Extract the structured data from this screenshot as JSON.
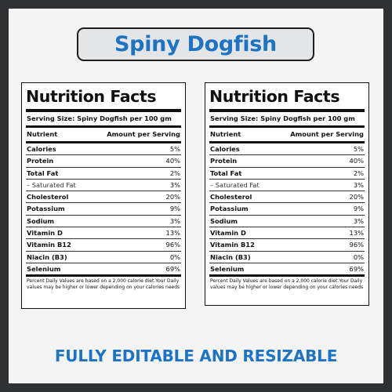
{
  "title": "Spiny Dogfish",
  "label": {
    "heading": "Nutrition Facts",
    "serving": "Serving Size: Spiny Dogfish per 100 gm",
    "col_nutrient": "Nutrient",
    "col_amount": "Amount per Serving",
    "rows": [
      {
        "name": "Calories",
        "value": "5%"
      },
      {
        "name": "Protein",
        "value": "40%"
      },
      {
        "name": "Total Fat",
        "value": "2%"
      },
      {
        "name": "– Saturated Fat",
        "value": "3%"
      },
      {
        "name": "Cholesterol",
        "value": "20%"
      },
      {
        "name": "Potassium",
        "value": "9%"
      },
      {
        "name": "Sodium",
        "value": "3%"
      },
      {
        "name": "Vitamin D",
        "value": "13%"
      },
      {
        "name": "Vitamin B12",
        "value": "96%"
      },
      {
        "name": "Niacin (B3)",
        "value": "0%"
      },
      {
        "name": "Selenium",
        "value": "69%"
      }
    ],
    "footnote": "Percent Daily Values are based on a 2,000 calorie diet.Your Daily values may be higher or lower depending on your calories needs"
  },
  "tagline": "FULLY EDITABLE AND RESIZABLE",
  "colors": {
    "accent": "#1d74c4",
    "border": "#2f3133",
    "pill_bg": "#e4e5e6",
    "background": "#f4f4f4"
  }
}
